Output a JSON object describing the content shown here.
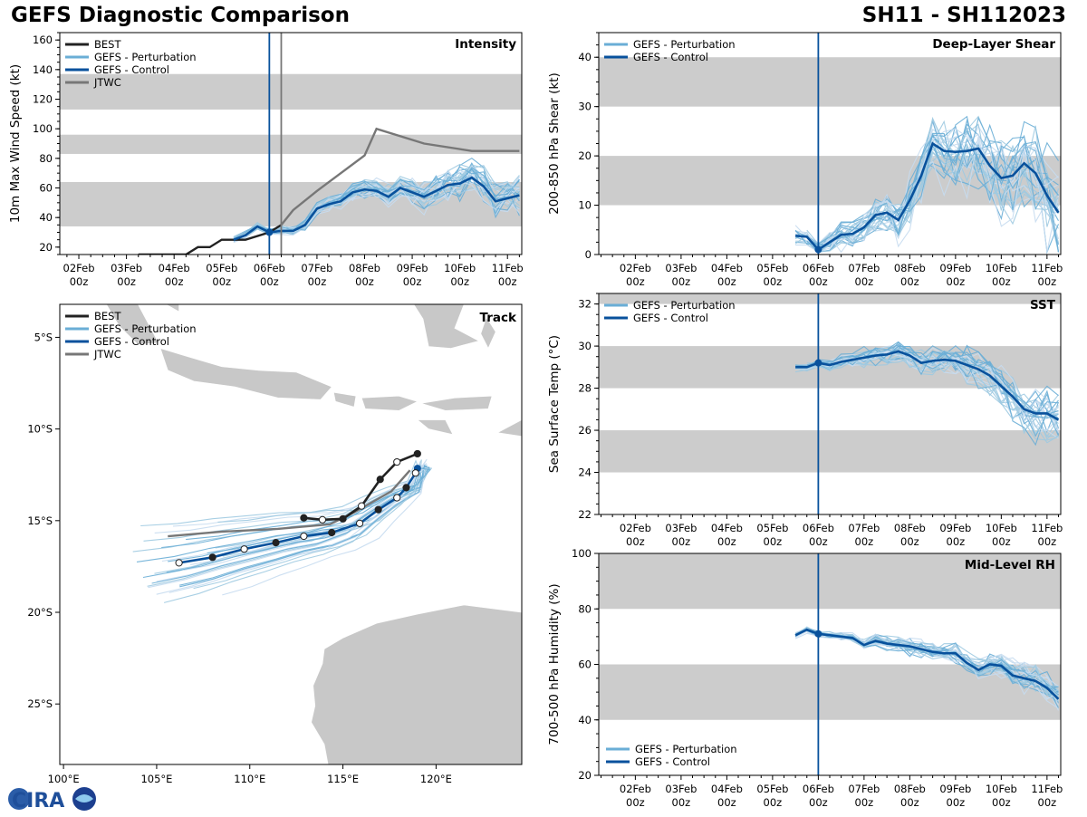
{
  "header": {
    "title": "GEFS Diagnostic Comparison",
    "storm_id": "SH11 - SH112023"
  },
  "colors": {
    "best": "#222222",
    "perturbation": "#6aaed6",
    "control": "#08519c",
    "jtwc": "#777777",
    "band": "#cccccc",
    "land": "#c8c8c8"
  },
  "logo_text": "CIRA",
  "time_ticks": [
    "02Feb\n00z",
    "03Feb\n00z",
    "04Feb\n00z",
    "05Feb\n00z",
    "06Feb\n00z",
    "07Feb\n00z",
    "08Feb\n00z",
    "09Feb\n00z",
    "10Feb\n00z",
    "11Feb\n00z"
  ],
  "chart_data": [
    {
      "id": "intensity",
      "type": "line",
      "title": "Intensity",
      "ylabel": "10m Max Wind Speed (kt)",
      "ylim": [
        15,
        165
      ],
      "yticks": [
        20,
        40,
        60,
        80,
        100,
        120,
        140,
        160
      ],
      "xlim_days": [
        -4.4,
        5.3
      ],
      "bands": [
        [
          34,
          64
        ],
        [
          83,
          96
        ],
        [
          113,
          137
        ]
      ],
      "init_day": 0,
      "jtwc_init_day": 0.25,
      "legend": [
        "BEST",
        "GEFS - Perturbation",
        "GEFS - Control",
        "JTWC"
      ],
      "series": [
        {
          "name": "BEST",
          "x": [
            -2.75,
            -1.75,
            -1.5,
            -1.25,
            -1.0,
            -0.5,
            0,
            0.25
          ],
          "y": [
            15,
            15,
            20,
            20,
            25,
            25,
            30,
            35
          ]
        },
        {
          "name": "GEFS - Control",
          "x": [
            -0.75,
            -0.5,
            -0.25,
            0,
            0.25,
            0.5,
            0.75,
            1,
            1.25,
            1.5,
            1.75,
            2,
            2.25,
            2.5,
            2.75,
            3,
            3.25,
            3.5,
            3.75,
            4,
            4.25,
            4.5,
            4.75,
            5,
            5.25
          ],
          "y": [
            25,
            28,
            34,
            30,
            31,
            31,
            35,
            46,
            49,
            51,
            57,
            59,
            58,
            54,
            60,
            57,
            54,
            58,
            62,
            63,
            67,
            61,
            51,
            53,
            55
          ]
        },
        {
          "name": "JTWC",
          "x": [
            0.25,
            0.5,
            1.0,
            1.5,
            2.0,
            2.25,
            3.25,
            4.25,
            5.25
          ],
          "y": [
            35,
            45,
            58,
            70,
            82,
            100,
            90,
            85,
            85
          ]
        }
      ]
    },
    {
      "id": "shear",
      "type": "line",
      "title": "Deep-Layer Shear",
      "ylabel": "200-850 hPa Shear (kt)",
      "ylim": [
        0,
        45
      ],
      "yticks": [
        0,
        10,
        20,
        30,
        40
      ],
      "xlim_days": [
        -4.8,
        5.3
      ],
      "bands": [
        [
          10,
          20
        ],
        [
          30,
          40
        ]
      ],
      "init_day": 0,
      "legend": [
        "GEFS - Perturbation",
        "GEFS - Control"
      ],
      "series": [
        {
          "name": "GEFS - Control",
          "x": [
            -0.5,
            -0.25,
            0,
            0.25,
            0.5,
            0.75,
            1,
            1.25,
            1.5,
            1.75,
            2,
            2.25,
            2.5,
            2.75,
            3,
            3.25,
            3.5,
            3.75,
            4,
            4.25,
            4.5,
            4.75,
            5,
            5.25
          ],
          "y": [
            3.8,
            3.6,
            1,
            2.5,
            4,
            4.2,
            5.5,
            8,
            8.5,
            7,
            11,
            16,
            22.5,
            21,
            20.8,
            21,
            21.5,
            18,
            15.5,
            16,
            18.5,
            16.5,
            12,
            8.5
          ]
        }
      ]
    },
    {
      "id": "sst",
      "type": "line",
      "title": "SST",
      "ylabel": "Sea Surface Temp (°C)",
      "ylim": [
        22,
        32.5
      ],
      "yticks": [
        22,
        24,
        26,
        28,
        30,
        32
      ],
      "xlim_days": [
        -4.8,
        5.3
      ],
      "bands": [
        [
          24,
          26
        ],
        [
          28,
          30
        ],
        [
          32,
          34
        ]
      ],
      "init_day": 0,
      "legend": [
        "GEFS - Perturbation",
        "GEFS - Control"
      ],
      "series": [
        {
          "name": "GEFS - Control",
          "x": [
            -0.5,
            -0.25,
            0,
            0.25,
            0.5,
            0.75,
            1,
            1.25,
            1.5,
            1.75,
            2,
            2.25,
            2.5,
            2.75,
            3,
            3.25,
            3.5,
            3.75,
            4,
            4.25,
            4.5,
            4.75,
            5,
            5.25
          ],
          "y": [
            29,
            29,
            29.2,
            29.1,
            29.25,
            29.35,
            29.45,
            29.55,
            29.6,
            29.75,
            29.55,
            29.2,
            29.3,
            29.35,
            29.3,
            29.1,
            28.9,
            28.6,
            28.1,
            27.6,
            27,
            26.8,
            26.8,
            26.5
          ]
        }
      ]
    },
    {
      "id": "rh",
      "type": "line",
      "title": "Mid-Level RH",
      "ylabel": "700-500 hPa Humidity (%)",
      "ylim": [
        20,
        100
      ],
      "yticks": [
        20,
        40,
        60,
        80,
        100
      ],
      "xlim_days": [
        -4.8,
        5.3
      ],
      "bands": [
        [
          40,
          60
        ],
        [
          80,
          100
        ]
      ],
      "init_day": 0,
      "legend": [
        "GEFS - Perturbation",
        "GEFS - Control"
      ],
      "series": [
        {
          "name": "GEFS - Control",
          "x": [
            -0.5,
            -0.25,
            0,
            0.25,
            0.5,
            0.75,
            1,
            1.25,
            1.5,
            1.75,
            2,
            2.25,
            2.5,
            2.75,
            3,
            3.25,
            3.5,
            3.75,
            4,
            4.25,
            4.5,
            4.75,
            5,
            5.25
          ],
          "y": [
            70.5,
            72.5,
            71,
            70.5,
            70,
            69.5,
            67,
            68.5,
            67.5,
            67,
            66.5,
            65.5,
            64.5,
            64,
            64,
            60.5,
            58,
            60,
            59.5,
            56,
            55,
            54,
            51.5,
            47.5
          ]
        }
      ]
    },
    {
      "id": "track",
      "type": "scatter",
      "title": "Track",
      "xlim": [
        99.8,
        124.6
      ],
      "ylim": [
        -28.3,
        -3.2
      ],
      "xticks": [
        100,
        105,
        110,
        115,
        120
      ],
      "xtick_labels": [
        "100°E",
        "105°E",
        "110°E",
        "115°E",
        "120°E"
      ],
      "yticks": [
        -5,
        -10,
        -15,
        -20,
        -25
      ],
      "ytick_labels": [
        "5°S",
        "10°S",
        "15°S",
        "20°S",
        "25°S"
      ],
      "legend": [
        "BEST",
        "GEFS - Perturbation",
        "GEFS - Control",
        "JTWC"
      ],
      "series": [
        {
          "name": "BEST",
          "lon": [
            112.9,
            113.9,
            115.0,
            116.0,
            117.0,
            117.9,
            119.0
          ],
          "lat": [
            -14.85,
            -14.95,
            -14.9,
            -14.2,
            -12.75,
            -11.8,
            -11.35
          ]
        },
        {
          "name": "GEFS - Control",
          "lon": [
            119.0,
            118.9,
            118.4,
            117.9,
            116.9,
            115.9,
            114.4,
            112.9,
            111.4,
            109.7,
            108.0,
            106.2
          ],
          "lat": [
            -12.15,
            -12.4,
            -13.2,
            -13.75,
            -14.4,
            -15.15,
            -15.65,
            -15.85,
            -16.2,
            -16.55,
            -17.0,
            -17.3
          ]
        },
        {
          "name": "JTWC",
          "lon": [
            118.6,
            117.6,
            115.6,
            114.3,
            111.5,
            108.5,
            105.6
          ],
          "lat": [
            -12.25,
            -13.4,
            -14.55,
            -15.2,
            -15.45,
            -15.6,
            -15.85
          ]
        }
      ]
    }
  ]
}
